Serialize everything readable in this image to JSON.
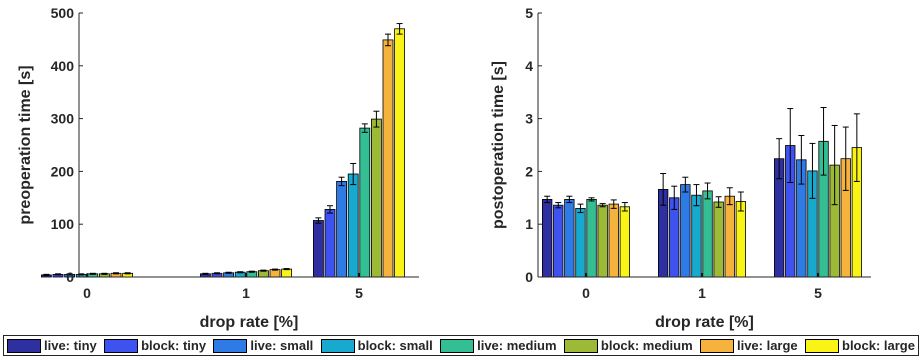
{
  "chart_data": [
    {
      "type": "bar",
      "xlabel": "drop rate [%]",
      "ylabel": "preoperation time [s]",
      "categories": [
        "0",
        "1",
        "5"
      ],
      "ylim": [
        0,
        500
      ],
      "yticks": [
        "0",
        "100",
        "200",
        "300",
        "400",
        "500"
      ],
      "series": [
        {
          "name": "live: tiny",
          "values": [
            4,
            6,
            107
          ],
          "errors": [
            1,
            1,
            5
          ]
        },
        {
          "name": "block: tiny",
          "values": [
            5,
            7,
            128
          ],
          "errors": [
            1,
            1,
            7
          ]
        },
        {
          "name": "live: small",
          "values": [
            5,
            8,
            181
          ],
          "errors": [
            1,
            1,
            8
          ]
        },
        {
          "name": "block: small",
          "values": [
            5,
            9,
            195
          ],
          "errors": [
            1,
            1,
            20
          ]
        },
        {
          "name": "live: medium",
          "values": [
            6,
            10,
            282
          ],
          "errors": [
            1,
            1,
            8
          ]
        },
        {
          "name": "block: medium",
          "values": [
            6,
            12,
            299
          ],
          "errors": [
            1,
            1,
            15
          ]
        },
        {
          "name": "live: large",
          "values": [
            7,
            14,
            449
          ],
          "errors": [
            1,
            1,
            11
          ]
        },
        {
          "name": "block: large",
          "values": [
            7,
            15,
            470
          ],
          "errors": [
            1,
            1,
            10
          ]
        }
      ]
    },
    {
      "type": "bar",
      "xlabel": "drop rate [%]",
      "ylabel": "postoperation time [s]",
      "categories": [
        "0",
        "1",
        "5"
      ],
      "ylim": [
        0,
        5
      ],
      "yticks": [
        "0",
        "1",
        "2",
        "3",
        "4",
        "5"
      ],
      "series": [
        {
          "name": "live: tiny",
          "values": [
            1.47,
            1.66,
            2.24
          ],
          "errors": [
            0.06,
            0.3,
            0.38
          ]
        },
        {
          "name": "block: tiny",
          "values": [
            1.36,
            1.5,
            2.49
          ],
          "errors": [
            0.05,
            0.22,
            0.7
          ]
        },
        {
          "name": "live: small",
          "values": [
            1.47,
            1.75,
            2.22
          ],
          "errors": [
            0.06,
            0.14,
            0.46
          ]
        },
        {
          "name": "block: small",
          "values": [
            1.3,
            1.55,
            2.01
          ],
          "errors": [
            0.08,
            0.2,
            0.52
          ]
        },
        {
          "name": "live: medium",
          "values": [
            1.47,
            1.63,
            2.57
          ],
          "errors": [
            0.03,
            0.15,
            0.64
          ]
        },
        {
          "name": "block: medium",
          "values": [
            1.36,
            1.42,
            2.12
          ],
          "errors": [
            0.03,
            0.1,
            0.75
          ]
        },
        {
          "name": "live: large",
          "values": [
            1.38,
            1.53,
            2.24
          ],
          "errors": [
            0.08,
            0.16,
            0.6
          ]
        },
        {
          "name": "block: large",
          "values": [
            1.33,
            1.43,
            2.45
          ],
          "errors": [
            0.08,
            0.18,
            0.64
          ]
        }
      ]
    }
  ],
  "colors": [
    "#2e2fa0",
    "#3e52f0",
    "#2f7be6",
    "#18a9cf",
    "#33bf93",
    "#9cba35",
    "#f5b33d",
    "#f9f316"
  ]
}
